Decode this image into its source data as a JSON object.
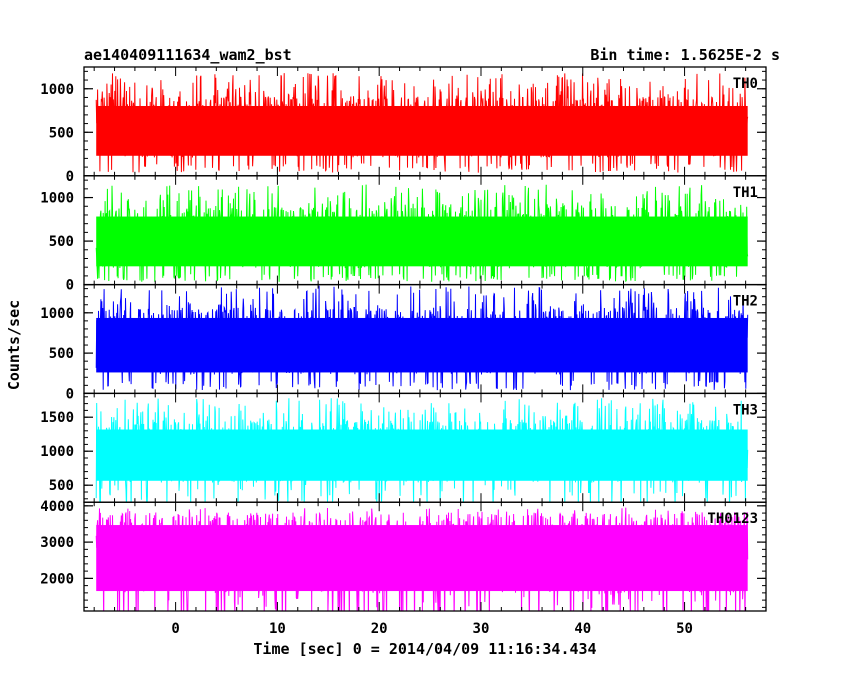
{
  "header": {
    "left_title": "ae140409111634_wam2_bst",
    "right_title": "Bin time: 1.5625E-2 s"
  },
  "chart_data": {
    "type": "line",
    "title": "ae140409111634_wam2_bst",
    "subtitle": "Bin time: 1.5625E-2 s",
    "xlabel": "Time [sec] 0 = 2014/04/09 11:16:34.434",
    "ylabel": "Counts/sec",
    "xlim": [
      -9,
      58
    ],
    "xticks": [
      0,
      10,
      20,
      30,
      40,
      50
    ],
    "x_minor_step": 2,
    "data_x_range": [
      -7.8,
      56.2
    ],
    "bin_time": 0.015625,
    "grid": false,
    "legend": "none",
    "panels": [
      {
        "name": "TH0",
        "color": "#ff0000",
        "ylim": [
          0,
          1250
        ],
        "yticks": [
          0,
          500,
          1000
        ],
        "y_minor_step": 100,
        "baseline": 120,
        "mean": 560,
        "peak": 1180
      },
      {
        "name": "TH1",
        "color": "#00ff00",
        "ylim": [
          0,
          1250
        ],
        "yticks": [
          0,
          500,
          1000
        ],
        "y_minor_step": 100,
        "baseline": 100,
        "mean": 540,
        "peak": 1150
      },
      {
        "name": "TH2",
        "color": "#0000ff",
        "ylim": [
          0,
          1350
        ],
        "yticks": [
          0,
          500,
          1000
        ],
        "y_minor_step": 100,
        "baseline": 130,
        "mean": 650,
        "peak": 1340
      },
      {
        "name": "TH3",
        "color": "#00ffff",
        "ylim": [
          250,
          1850
        ],
        "yticks": [
          500,
          1000,
          1500
        ],
        "y_minor_step": 100,
        "baseline": 420,
        "mean": 1000,
        "peak": 1780
      },
      {
        "name": "TH0123",
        "color": "#ff00ff",
        "ylim": [
          1100,
          4100
        ],
        "yticks": [
          2000,
          3000,
          4000
        ],
        "y_minor_step": 200,
        "baseline": 1300,
        "mean": 2700,
        "peak": 3950
      }
    ]
  }
}
